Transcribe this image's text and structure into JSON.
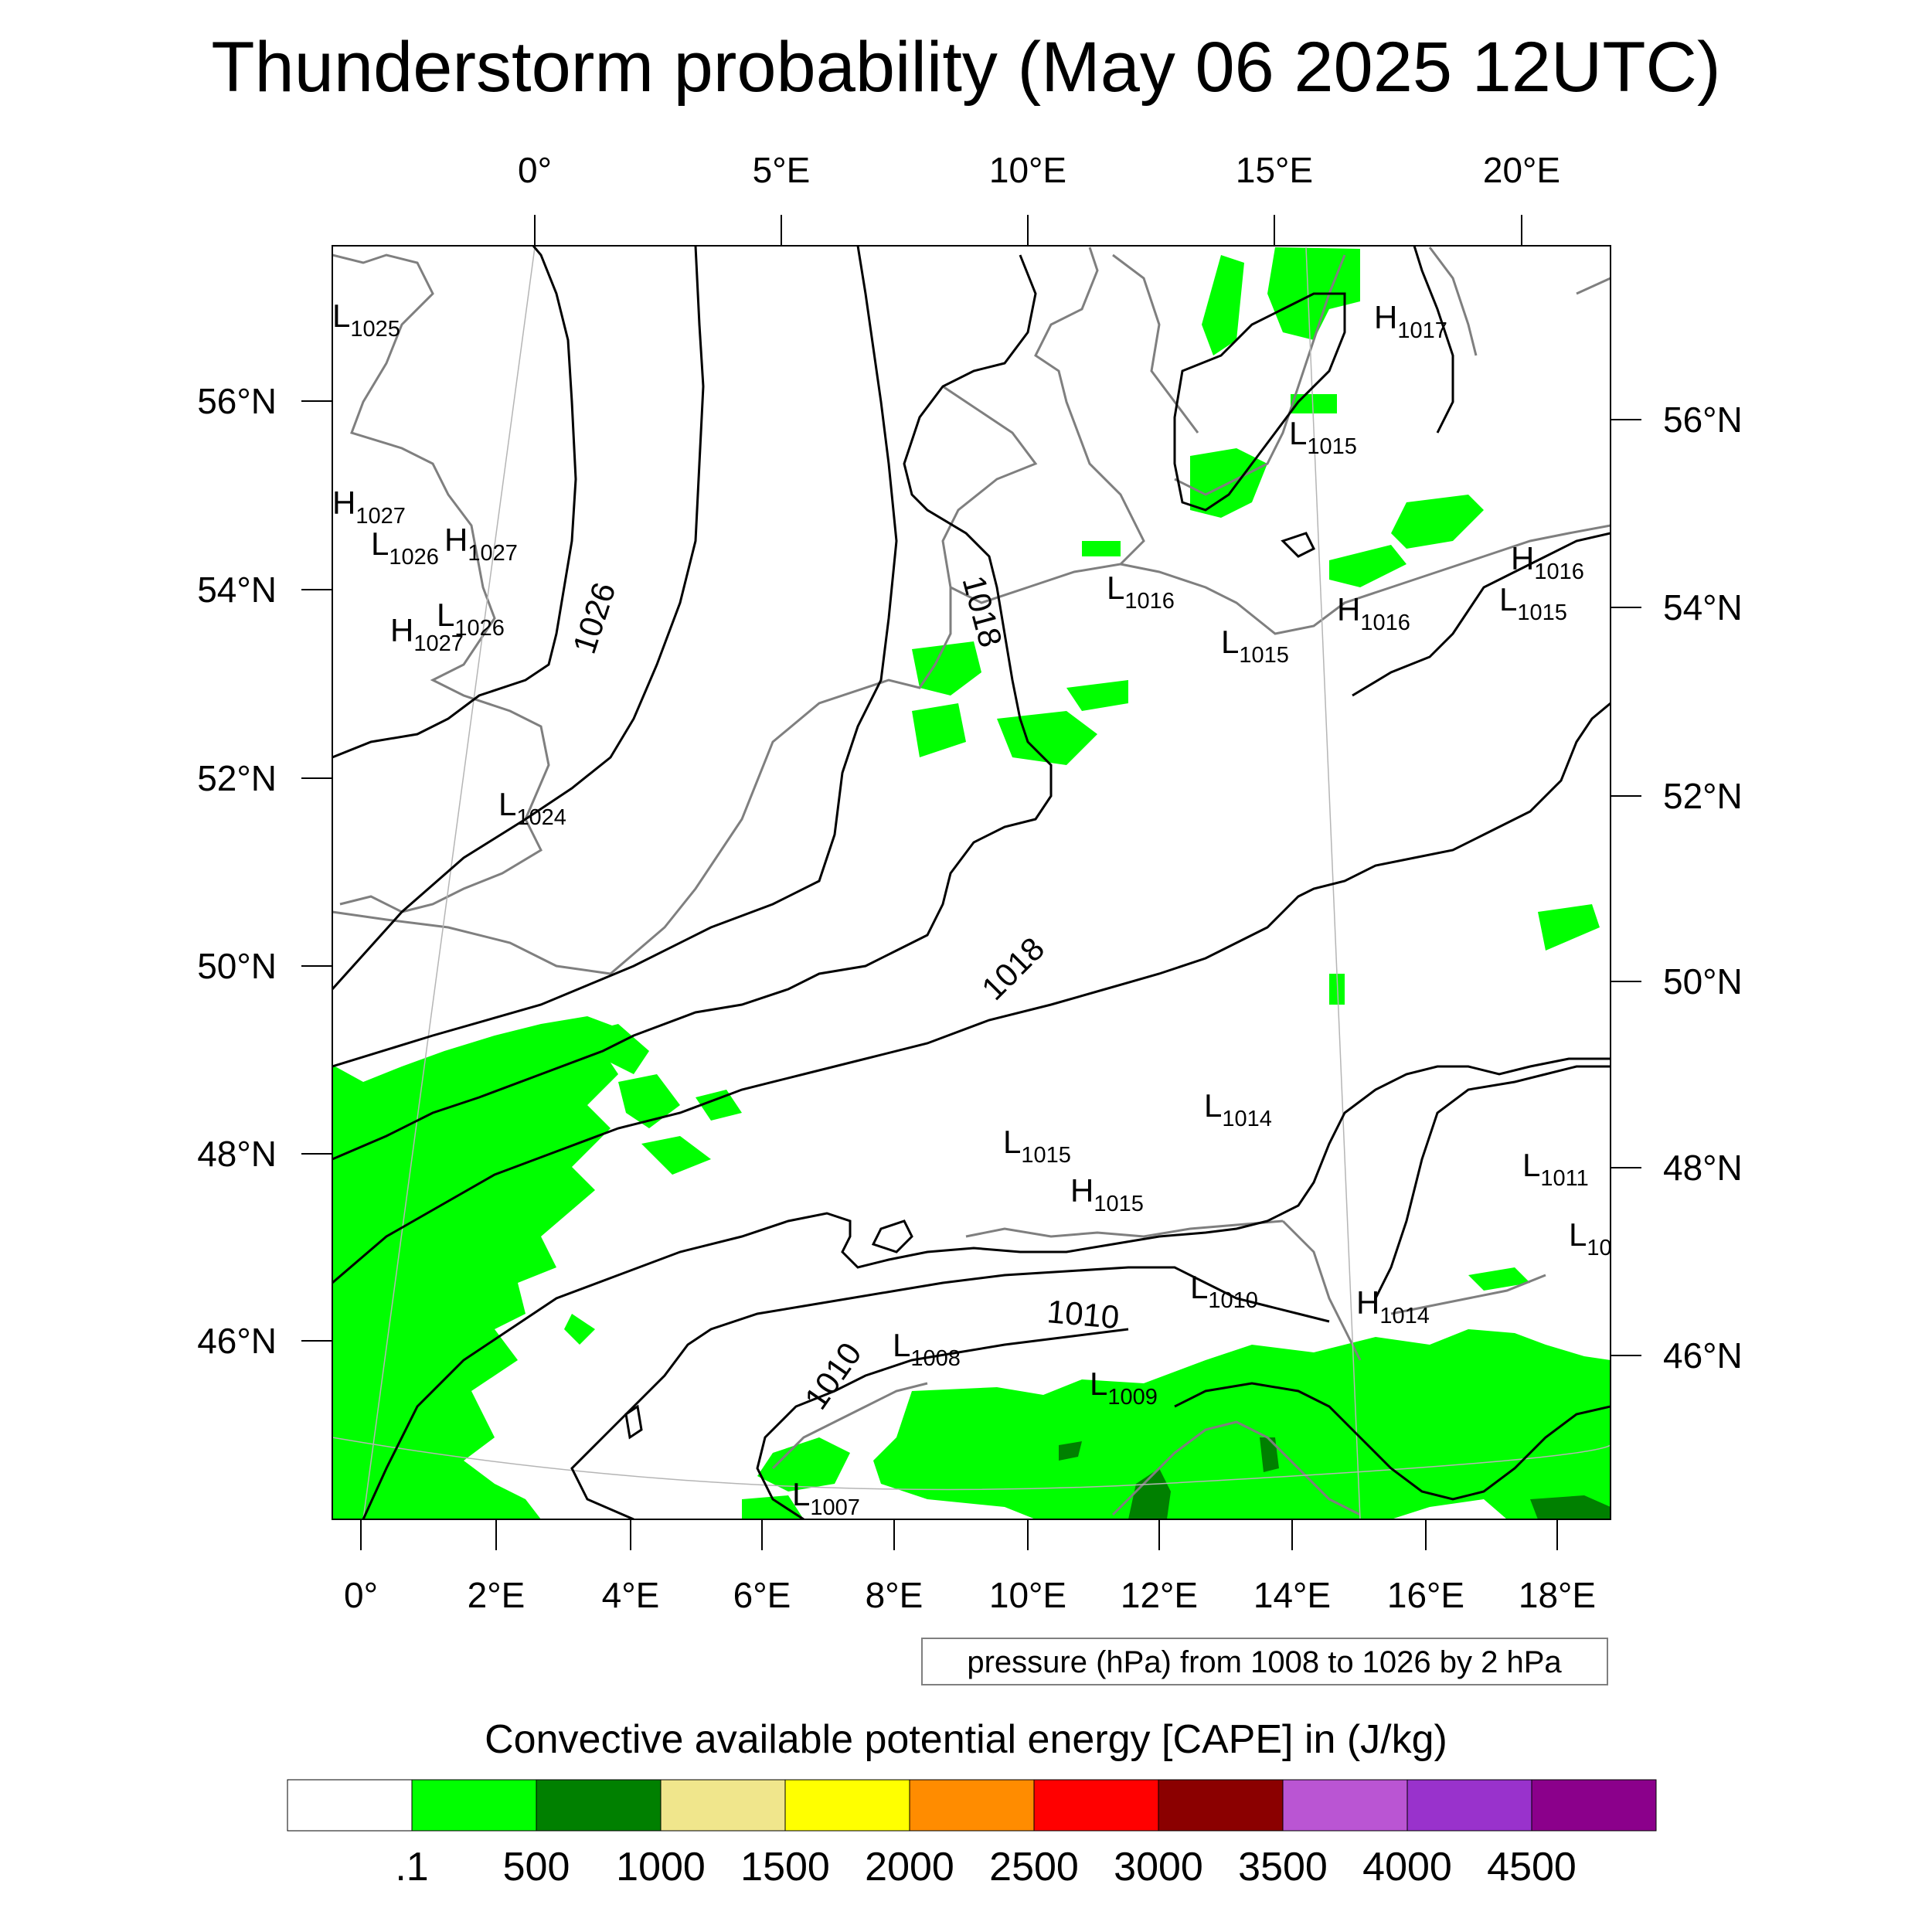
{
  "title": "Thunderstorm probability (May 06 2025 12UTC)",
  "map": {
    "top_lon_labels": [
      "0°",
      "5°E",
      "10°E",
      "15°E",
      "20°E"
    ],
    "bottom_lon_labels": [
      "0°",
      "2°E",
      "4°E",
      "6°E",
      "8°E",
      "10°E",
      "12°E",
      "14°E",
      "16°E",
      "18°E"
    ],
    "left_lat_labels": [
      "56°N",
      "54°N",
      "52°N",
      "50°N",
      "48°N",
      "46°N"
    ],
    "right_lat_labels": [
      "56°N",
      "54°N",
      "52°N",
      "50°N",
      "48°N",
      "46°N"
    ],
    "isobar_labels": [
      "1026",
      "1018",
      "1018",
      "1010",
      "1010"
    ],
    "pressure_centers": [
      {
        "type": "L",
        "value": "1025"
      },
      {
        "type": "H",
        "value": "1027"
      },
      {
        "type": "L",
        "value": "1026"
      },
      {
        "type": "H",
        "value": "1027"
      },
      {
        "type": "H",
        "value": "1027"
      },
      {
        "type": "L",
        "value": "1026"
      },
      {
        "type": "L",
        "value": "1024"
      },
      {
        "type": "H",
        "value": "1017"
      },
      {
        "type": "L",
        "value": "1015"
      },
      {
        "type": "L",
        "value": "1016"
      },
      {
        "type": "L",
        "value": "1015"
      },
      {
        "type": "H",
        "value": "1016"
      },
      {
        "type": "H",
        "value": "1016"
      },
      {
        "type": "L",
        "value": "1015"
      },
      {
        "type": "L",
        "value": "1014"
      },
      {
        "type": "L",
        "value": "1015"
      },
      {
        "type": "H",
        "value": "1015"
      },
      {
        "type": "L",
        "value": "1011"
      },
      {
        "type": "L",
        "value": "10"
      },
      {
        "type": "L",
        "value": "1010"
      },
      {
        "type": "H",
        "value": "1014"
      },
      {
        "type": "L",
        "value": "1008"
      },
      {
        "type": "L",
        "value": "1009"
      },
      {
        "type": "L",
        "value": "1007"
      }
    ]
  },
  "info_label": "pressure (hPa) from 1008 to 1026 by 2 hPa",
  "colorbar": {
    "title": "Convective available potential energy [CAPE] in (J/kg)",
    "colors": [
      "#ffffff",
      "#00ff00",
      "#008000",
      "#f0e68c",
      "#ffff00",
      "#ff8c00",
      "#ff0000",
      "#8b0000",
      "#ba55d3",
      "#9932cc",
      "#8b008b"
    ],
    "tick_labels": [
      ".1",
      "500",
      "1000",
      "1500",
      "2000",
      "2500",
      "3000",
      "3500",
      "4000",
      "4500"
    ]
  }
}
